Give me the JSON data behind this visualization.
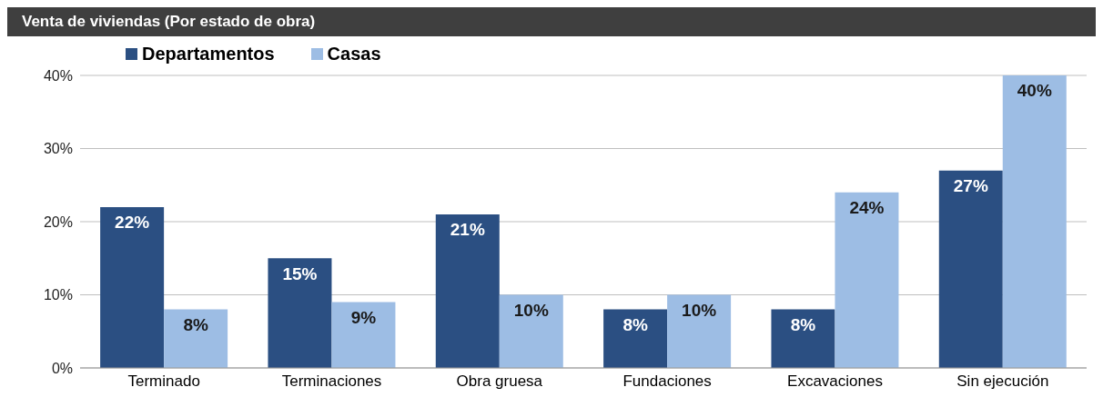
{
  "chart_data": {
    "type": "bar",
    "title": "Venta de viviendas (Por estado de obra)",
    "categories": [
      "Terminado",
      "Terminaciones",
      "Obra gruesa",
      "Fundaciones",
      "Excavaciones",
      "Sin ejecución"
    ],
    "series": [
      {
        "name": "Departamentos",
        "color": "#2b4f82",
        "values": [
          22,
          15,
          21,
          8,
          8,
          27
        ],
        "value_labels": [
          "22%",
          "15%",
          "21%",
          "8%",
          "8%",
          "27%"
        ]
      },
      {
        "name": "Casas",
        "color": "#9dbde4",
        "values": [
          8,
          9,
          10,
          10,
          24,
          40
        ],
        "value_labels": [
          "8%",
          "9%",
          "10%",
          "10%",
          "24%",
          "40%"
        ]
      }
    ],
    "ylim": [
      0,
      40
    ],
    "yticks": [
      {
        "value": 0,
        "label": "0%"
      },
      {
        "value": 10,
        "label": "10%"
      },
      {
        "value": 20,
        "label": "20%"
      },
      {
        "value": 30,
        "label": "30%"
      },
      {
        "value": 40,
        "label": "40%"
      }
    ],
    "grid": "y",
    "legend": "top left"
  }
}
